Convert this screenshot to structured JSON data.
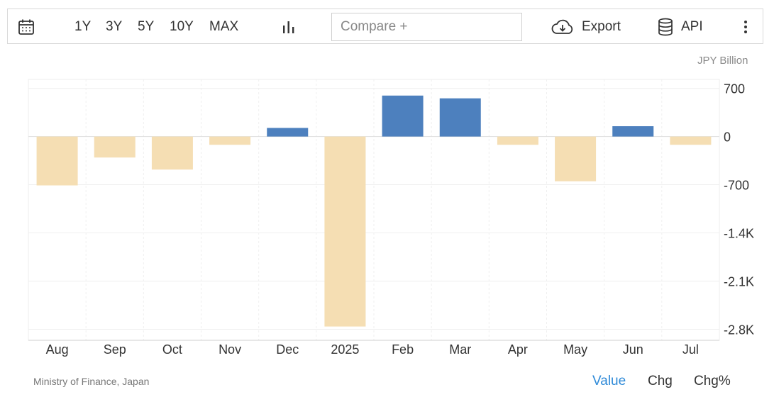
{
  "toolbar": {
    "ranges": [
      "1Y",
      "3Y",
      "5Y",
      "10Y",
      "MAX"
    ],
    "compare_placeholder": "Compare +",
    "export_label": "Export",
    "api_label": "API",
    "icons": [
      "calendar-icon",
      "bar-chart-icon",
      "cloud-download-icon",
      "database-icon",
      "more-vertical-icon"
    ]
  },
  "unit_label": "JPY Billion",
  "source": "Ministry of Finance, Japan",
  "modes": [
    "Value",
    "Chg",
    "Chg%"
  ],
  "active_mode": "Value",
  "colors": {
    "positive": "#4d80be",
    "negative": "#f5deb3",
    "active_mode": "#2e8ad8"
  },
  "chart_data": {
    "type": "bar",
    "categories": [
      "Aug",
      "Sep",
      "Oct",
      "Nov",
      "Dec",
      "2025",
      "Feb",
      "Mar",
      "Apr",
      "May",
      "Jun",
      "Jul"
    ],
    "values": [
      -710,
      -305,
      -480,
      -120,
      125,
      -2760,
      595,
      555,
      -120,
      -650,
      150,
      -120
    ],
    "yticks": [
      700,
      0,
      -700,
      -1400,
      -2100,
      -2800
    ],
    "ytick_labels": [
      "700",
      "0",
      "-700",
      "-1.4K",
      "-2.1K",
      "-2.8K"
    ],
    "ylim": [
      -2960,
      830
    ],
    "ylabel": "JPY Billion",
    "grid": true
  }
}
